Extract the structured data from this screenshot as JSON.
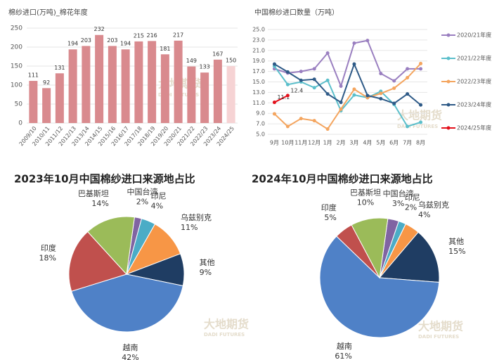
{
  "watermark": {
    "cn": "大地期货",
    "en": "DADI FUTURES"
  },
  "chart_data": [
    {
      "type": "bar",
      "title": "棉纱进口(万吨)_棉花年度",
      "categories": [
        "2009/10",
        "2010/11",
        "2011/12",
        "2012/13",
        "2013/14",
        "2014/15",
        "2015/16",
        "2016/17",
        "2017/18",
        "2018/19",
        "2019/20",
        "2020/21",
        "2021/22",
        "2022/23",
        "2023/24",
        "2024/25"
      ],
      "values": [
        111,
        92,
        131,
        194,
        203,
        232,
        203,
        194,
        215,
        216,
        181,
        217,
        149,
        133,
        167,
        150
      ],
      "colors": [
        "#d98a8e",
        "#d98a8e",
        "#d98a8e",
        "#d98a8e",
        "#d98a8e",
        "#d98a8e",
        "#d98a8e",
        "#d98a8e",
        "#d98a8e",
        "#d98a8e",
        "#d98a8e",
        "#d98a8e",
        "#d98a8e",
        "#d98a8e",
        "#d98a8e",
        "#f6d3d4"
      ],
      "ylim": [
        0,
        250
      ],
      "yticks": [
        0,
        50,
        100,
        150,
        200,
        250
      ],
      "grid": true
    },
    {
      "type": "line",
      "title": "中国棉纱进口数量（万吨）",
      "categories": [
        "9月",
        "10月",
        "11月",
        "12月",
        "1月",
        "2月",
        "3月",
        "4月",
        "5月",
        "6月",
        "7月",
        "8月"
      ],
      "series": [
        {
          "name": "2020/21年度",
          "color": "#9a7fc0",
          "values": [
            17.5,
            16.7,
            17.0,
            17.5,
            20.5,
            14.2,
            22.4,
            22.9,
            16.6,
            15.2,
            17.5,
            17.5
          ]
        },
        {
          "name": "2021/22年度",
          "color": "#5bbfcb",
          "values": [
            18.0,
            14.5,
            15.0,
            13.9,
            15.3,
            9.5,
            12.5,
            12.0,
            13.2,
            10.7,
            6.5,
            7.3
          ]
        },
        {
          "name": "2022/23年度",
          "color": "#f4a55f",
          "values": [
            8.9,
            6.5,
            8.0,
            7.6,
            6.0,
            9.8,
            13.6,
            12.0,
            12.8,
            13.8,
            15.8,
            18.5
          ]
        },
        {
          "name": "2023/24年度",
          "color": "#2e5a87",
          "values": [
            18.4,
            16.9,
            15.3,
            15.5,
            12.7,
            11.1,
            18.4,
            12.4,
            11.8,
            10.9,
            12.7,
            10.6
          ]
        },
        {
          "name": "2024/25年度",
          "color": "#e3101b",
          "values": [
            11.1,
            12.4,
            null,
            null,
            null,
            null,
            null,
            null,
            null,
            null,
            null,
            null
          ],
          "show_labels": true
        }
      ],
      "ylim": [
        5,
        25
      ],
      "yticks": [
        {
          "value": 5,
          "label": "5.0"
        },
        {
          "value": 7,
          "label": "7.0"
        },
        {
          "value": 9,
          "label": "9.0"
        },
        {
          "value": 11,
          "label": "11.0"
        },
        {
          "value": 13,
          "label": "13.0"
        },
        {
          "value": 15,
          "label": "15.0"
        },
        {
          "value": 17,
          "label": "17.0"
        },
        {
          "value": 19,
          "label": "19.0"
        },
        {
          "value": 21,
          "label": "21.0"
        },
        {
          "value": 23,
          "label": "23.0"
        },
        {
          "value": 25,
          "label": "25.0"
        }
      ],
      "grid": true,
      "legend": "right"
    },
    {
      "type": "pie",
      "title": "2023年10月中国棉纱进口来源地占比",
      "categories": [
        "中国台湾",
        "印尼",
        "乌兹别克",
        "其他",
        "越南",
        "印度",
        "巴基斯坦"
      ],
      "values": [
        2,
        4,
        11,
        9,
        42,
        18,
        14
      ],
      "value_labels": [
        "2%",
        "4%",
        "11%",
        "9%",
        "42%",
        "18%",
        "14%"
      ],
      "colors": [
        "#8064a2",
        "#4bacc6",
        "#f79646",
        "#1f3d63",
        "#4f81c7",
        "#c0504d",
        "#9bbb59"
      ]
    },
    {
      "type": "pie",
      "title": "2024年10月中国棉纱进口来源地占比",
      "categories": [
        "中国台湾",
        "印尼",
        "乌兹别克",
        "其他",
        "越南",
        "印度",
        "巴基斯坦"
      ],
      "values": [
        3,
        2,
        4,
        15,
        61,
        5,
        10
      ],
      "value_labels": [
        "3%",
        "2%",
        "4%",
        "15%",
        "61%",
        "5%",
        "10%"
      ],
      "colors": [
        "#8064a2",
        "#4bacc6",
        "#f79646",
        "#1f3d63",
        "#4f81c7",
        "#c0504d",
        "#9bbb59"
      ]
    }
  ]
}
